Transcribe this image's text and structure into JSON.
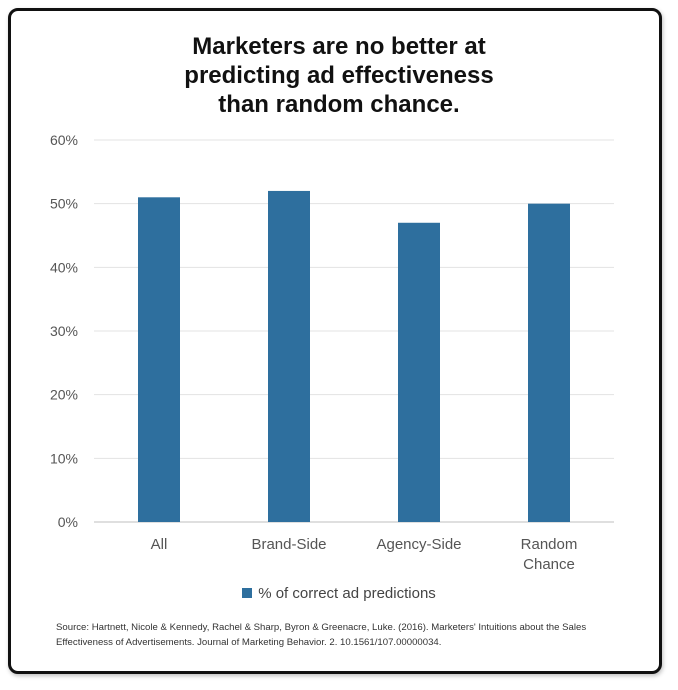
{
  "chart_data": {
    "type": "bar",
    "title": "Marketers are no better at\npredicting ad effectiveness\nthan random chance.",
    "categories": [
      "All",
      "Brand-Side",
      "Agency-Side",
      "Random\nChance"
    ],
    "series": [
      {
        "name": "% of correct ad predictions",
        "values": [
          51,
          52,
          47,
          50
        ]
      }
    ],
    "ylim": [
      0,
      60
    ],
    "yticks": [
      0,
      10,
      20,
      30,
      40,
      50,
      60
    ],
    "ytick_labels": [
      "0%",
      "10%",
      "20%",
      "30%",
      "40%",
      "50%",
      "60%"
    ],
    "grid": true,
    "legend_position": "bottom",
    "bar_color": "#2e6f9e",
    "source": "Source: Hartnett, Nicole & Kennedy, Rachel & Sharp, Byron & Greenacre, Luke. (2016). Marketers' Intuitions about the Sales Effectiveness of Advertisements. Journal of Marketing Behavior. 2. 10.1561/107.00000034."
  }
}
